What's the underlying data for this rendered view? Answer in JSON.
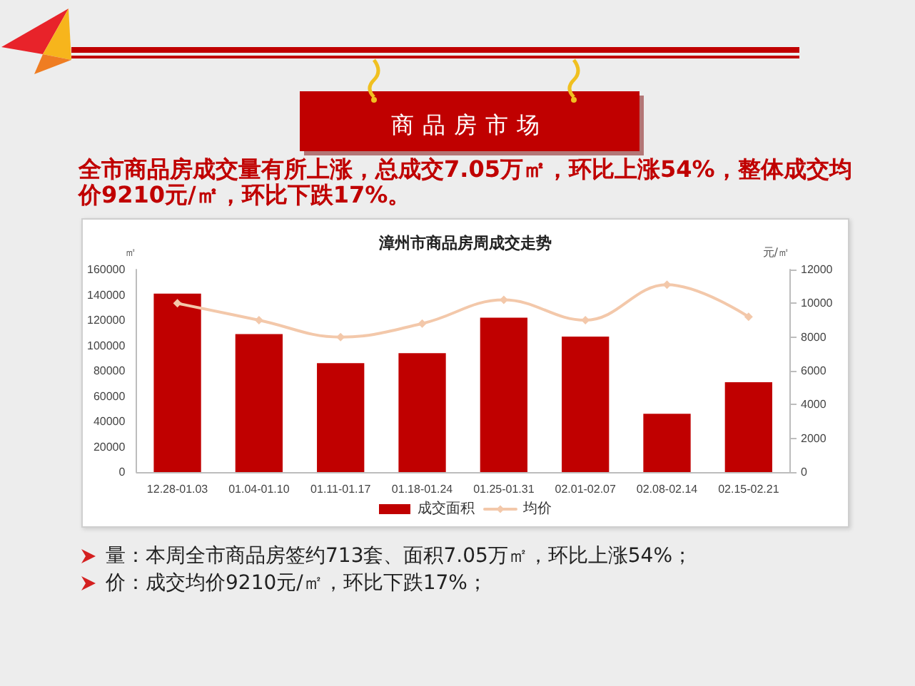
{
  "chart_data": {
    "type": "bar",
    "title": "漳州市商品房周成交走势",
    "annotations": [
      "商品房市场",
      "全市商品房成交量有所上涨，总成交7.05万㎡，环比上涨54%，整体成交均价9210元/㎡，环比下跌17%。",
      "量：本周全市商品房签约713套、面积7.05万㎡，环比上涨54%；",
      "价：成交均价9210元/㎡，环比下跌17%；"
    ],
    "ylabel": "㎡",
    "y2label": "元/㎡",
    "categories": [
      "12.28-01.03",
      "01.04-01.10",
      "01.11-01.17",
      "01.18-01.24",
      "01.25-01.31",
      "02.01-02.07",
      "02.08-02.14",
      "02.15-02.21"
    ],
    "series": [
      {
        "name": "成交面积",
        "color": "#c00000",
        "values": [
          141000,
          109000,
          86000,
          94000,
          122000,
          107000,
          46000,
          71000
        ]
      },
      {
        "name": "均价",
        "type": "line",
        "axis": "y2",
        "marker": "diamond",
        "color": "#f3c8aa",
        "values": [
          10000,
          9000,
          8000,
          8800,
          10200,
          9000,
          11100,
          9200
        ]
      }
    ],
    "ylim": [
      0,
      160000
    ],
    "yticks": [
      0,
      20000,
      40000,
      60000,
      80000,
      100000,
      120000,
      140000,
      160000
    ],
    "y2lim": [
      0,
      12000
    ],
    "y2ticks": [
      0,
      2000,
      4000,
      6000,
      8000,
      10000,
      12000
    ],
    "grid": false,
    "legend": "bottom"
  }
}
